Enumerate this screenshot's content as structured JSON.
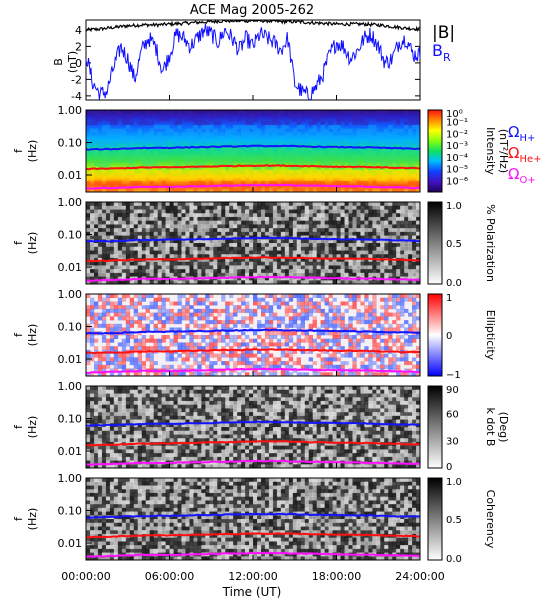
{
  "title": "ACE Mag 2005-262",
  "xlabel": "Time (UT)",
  "time_ticks": [
    "00:00:00",
    "06:00:00",
    "12:00:00",
    "18:00:00",
    "24:00:00"
  ],
  "freq_ticks": [
    "1.00",
    "0.10",
    "0.01"
  ],
  "panel1": {
    "ylabel": "B",
    "yunit": "(nT)",
    "yticks": [
      "4",
      "2",
      "0",
      "-2",
      "-4"
    ],
    "legend_total": "|B|",
    "legend_radial": "B",
    "legend_radial_sub": "R"
  },
  "freq_ylabel": "f",
  "freq_yunit": "(Hz)",
  "gyro_labels": {
    "omega": "Ω",
    "h": "H+",
    "he": "He+",
    "o": "O+"
  },
  "panels": [
    {
      "colorbar_label": "Intensity",
      "colorbar_unit": "(nT²/Hz)",
      "colorbar_ticks": [
        "10⁰",
        "10⁻¹",
        "10⁻²",
        "10⁻³",
        "10⁻⁴",
        "10⁻⁵",
        "10⁻⁶"
      ],
      "colorbar_scale": "rainbow",
      "value_range": [
        1e-06,
        1
      ]
    },
    {
      "colorbar_label": "% Polarization",
      "colorbar_unit": "",
      "colorbar_ticks": [
        "1.0",
        "0.5",
        "0.0"
      ],
      "colorbar_scale": "grayscale",
      "value_range": [
        0,
        1
      ]
    },
    {
      "colorbar_label": "Ellipticity",
      "colorbar_unit": "",
      "colorbar_ticks": [
        "1",
        "0",
        "−1"
      ],
      "colorbar_scale": "blue-white-red",
      "value_range": [
        -1,
        1
      ]
    },
    {
      "colorbar_label": "k dot B",
      "colorbar_unit": "(Deg)",
      "colorbar_ticks": [
        "90",
        "60",
        "30",
        "0"
      ],
      "colorbar_scale": "grayscale",
      "value_range": [
        0,
        90
      ]
    },
    {
      "colorbar_label": "Coherency",
      "colorbar_unit": "",
      "colorbar_ticks": [
        "1.0",
        "0.5",
        "0.0"
      ],
      "colorbar_scale": "grayscale",
      "value_range": [
        0,
        1
      ]
    }
  ],
  "colors": {
    "total_field": "#000000",
    "radial_field": "#1010ff",
    "h_gyro": "#1414ff",
    "he_gyro": "#ff1010",
    "o_gyro": "#ff10ff"
  },
  "chart_data": {
    "type": "line",
    "title": "ACE Mag 2005-262",
    "x_unit": "hours UT",
    "xlim": [
      0,
      24
    ],
    "panel1": {
      "ylim": [
        -4.5,
        5.2
      ],
      "series": [
        {
          "name": "|B|",
          "x": [
            0,
            1,
            2,
            3,
            4,
            5,
            6,
            7,
            8,
            9,
            10,
            11,
            12,
            13,
            14,
            15,
            16,
            17,
            18,
            19,
            20,
            21,
            22,
            23,
            24
          ],
          "values": [
            4.0,
            4.1,
            4.3,
            4.5,
            4.6,
            4.6,
            4.7,
            4.8,
            4.9,
            5.0,
            5.1,
            5.1,
            5.1,
            5.1,
            5.0,
            5.0,
            4.9,
            4.8,
            4.7,
            4.7,
            4.7,
            4.6,
            4.4,
            4.2,
            4.1
          ]
        },
        {
          "name": "B_R",
          "x": [
            0,
            0.5,
            1,
            1.5,
            2,
            2.5,
            3,
            3.5,
            4,
            4.5,
            5,
            5.5,
            6,
            6.5,
            7,
            7.5,
            8,
            8.5,
            9,
            9.5,
            10,
            10.5,
            11,
            11.5,
            12,
            12.5,
            13,
            13.5,
            14,
            14.5,
            15,
            15.5,
            16,
            16.5,
            17,
            17.5,
            18,
            18.5,
            19,
            19.5,
            20,
            20.5,
            21,
            21.5,
            22,
            22.5,
            23,
            23.5,
            24
          ],
          "values": [
            1.0,
            -2.5,
            -3.8,
            -3.5,
            -0.5,
            2.0,
            0.5,
            -2.0,
            1.5,
            3.0,
            2.0,
            -1.0,
            1.0,
            3.5,
            3.0,
            2.0,
            3.0,
            4.0,
            3.5,
            2.5,
            4.0,
            3.0,
            1.5,
            3.0,
            2.0,
            3.5,
            3.0,
            2.5,
            1.5,
            3.0,
            -2.5,
            -3.5,
            -4.0,
            -3.0,
            -1.5,
            1.0,
            2.5,
            2.0,
            0.5,
            1.5,
            3.0,
            3.5,
            2.0,
            0.0,
            0.5,
            2.5,
            3.0,
            1.0,
            1.0
          ]
        }
      ]
    },
    "gyrofrequency_hz": {
      "x": [
        0,
        2,
        4,
        6,
        8,
        10,
        12,
        14,
        16,
        18,
        20,
        22,
        24
      ],
      "H+": [
        0.061,
        0.063,
        0.068,
        0.069,
        0.072,
        0.075,
        0.078,
        0.078,
        0.075,
        0.072,
        0.071,
        0.067,
        0.064
      ],
      "He+": [
        0.0153,
        0.0158,
        0.017,
        0.0172,
        0.018,
        0.0188,
        0.0195,
        0.0195,
        0.0188,
        0.018,
        0.0178,
        0.0168,
        0.016
      ],
      "O+": [
        0.0038,
        0.004,
        0.0043,
        0.0043,
        0.0045,
        0.0047,
        0.0049,
        0.0049,
        0.0047,
        0.0045,
        0.0044,
        0.0042,
        0.004
      ]
    },
    "frequency_axis": {
      "ylim_hz": [
        0.003,
        1.0
      ],
      "scale": "log"
    }
  }
}
